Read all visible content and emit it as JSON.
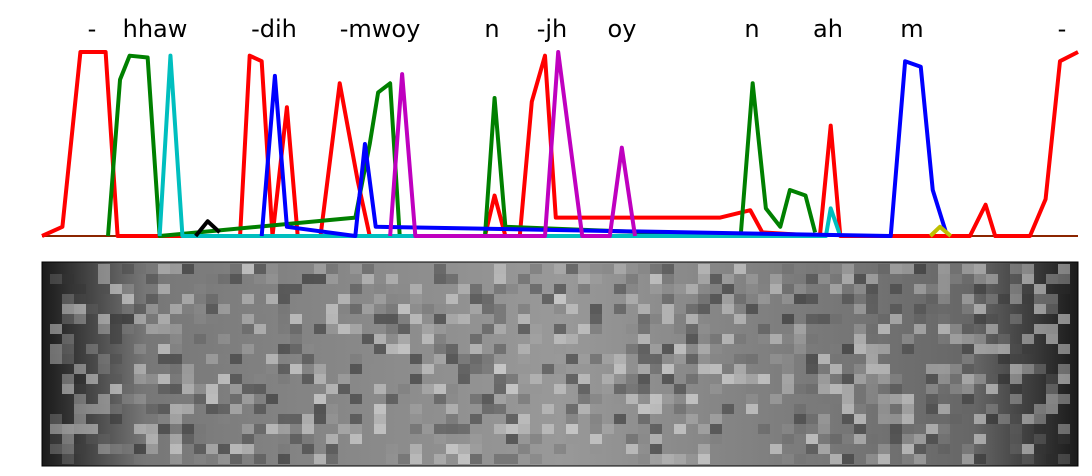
{
  "chart_data": {
    "type": "line",
    "labels": [
      "-",
      "hhaw",
      "-dih",
      "-mwoy",
      "n",
      "-jh",
      "oy",
      "n",
      "ah",
      "m",
      "-"
    ],
    "xlim": [
      0,
      86.3
    ],
    "ylim": [
      0,
      1
    ],
    "series": [
      {
        "color": "#ff0000",
        "x": [
          0,
          1.7,
          3.2,
          5.3,
          6.3,
          16.5,
          17.3,
          18.3,
          19.2,
          20.4,
          21.3,
          23.2,
          24.8,
          26.3,
          27.3,
          36.9,
          37.7,
          38.6,
          39.8,
          40.8,
          41.9,
          42.8,
          56.5,
          59,
          60,
          64.8,
          65.7,
          66.5,
          77.3,
          78.6,
          79.4,
          82.3,
          83.6,
          84.8,
          86.3
        ],
        "values": [
          0,
          0.05,
          1,
          1,
          0,
          0,
          0.98,
          0.95,
          0,
          0.7,
          0,
          0,
          0.83,
          0.3,
          0,
          0,
          0.22,
          0,
          0,
          0.73,
          0.98,
          0.1,
          0.1,
          0.14,
          0.02,
          0,
          0.6,
          0,
          0,
          0.17,
          0,
          0,
          0.2,
          0.95,
          1
        ]
      },
      {
        "color": "#008000",
        "x": [
          5.5,
          6.5,
          7.3,
          8.8,
          9.8,
          26.1,
          27.3,
          28,
          29,
          29.8,
          36.9,
          37.7,
          38.6,
          58.2,
          59.2,
          60.3,
          61.5,
          62.3,
          63.6,
          64.4
        ],
        "values": [
          0,
          0.85,
          0.98,
          0.97,
          0,
          0.1,
          0.5,
          0.78,
          0.83,
          0,
          0,
          0.75,
          0.05,
          0,
          0.83,
          0.15,
          0.05,
          0.25,
          0.22,
          0.02
        ]
      },
      {
        "color": "#00bfbf",
        "x": [
          9.8,
          10.7,
          11.7,
          65.3,
          65.7,
          66.5
        ],
        "values": [
          0,
          0.98,
          0,
          0,
          0.15,
          0
        ]
      },
      {
        "color": "#0000ff",
        "x": [
          18.3,
          19.4,
          20.4,
          26.1,
          26.9,
          27.8,
          70.7,
          71.9,
          73.2,
          74.2,
          75.3
        ],
        "values": [
          0,
          0.87,
          0.05,
          0,
          0.5,
          0.05,
          0,
          0.95,
          0.92,
          0.25,
          0.02
        ]
      },
      {
        "color": "#bf00bf",
        "x": [
          29,
          30,
          31.1,
          41.9,
          43,
          44,
          45,
          47.3,
          48.3,
          49.4
        ],
        "values": [
          0,
          0.88,
          0,
          0,
          1,
          0.5,
          0,
          0,
          0.48,
          0
        ]
      },
      {
        "color": "#000000",
        "x": [
          12.8,
          13.8,
          14.8
        ],
        "values": [
          0,
          0.08,
          0.02
        ]
      },
      {
        "color": "#bfbf00",
        "x": [
          74,
          74.8,
          75.7
        ],
        "values": [
          0,
          0.05,
          0
        ]
      }
    ]
  }
}
